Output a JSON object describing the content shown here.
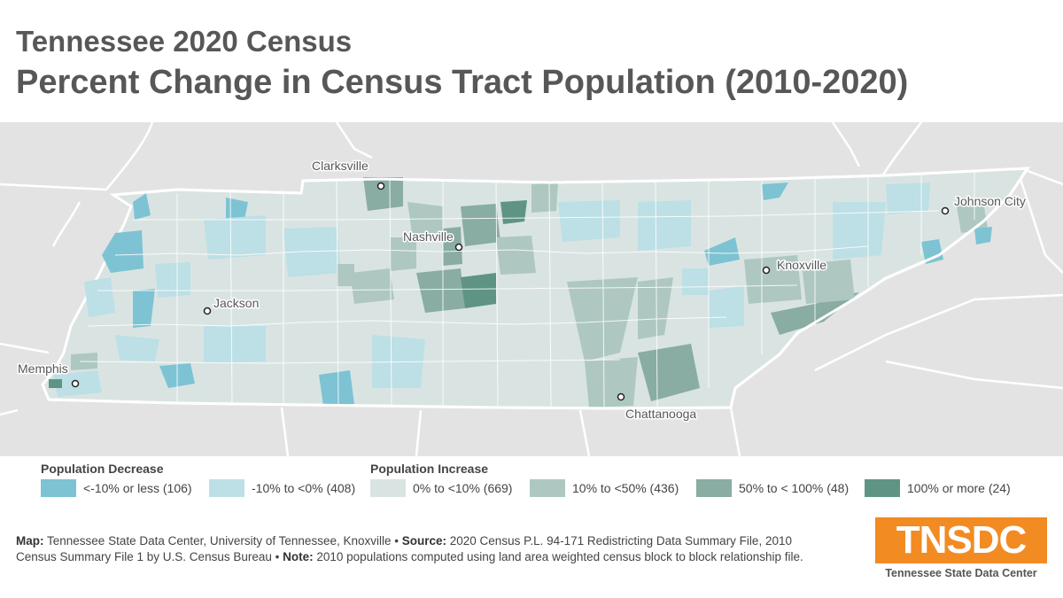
{
  "title": "Tennessee 2020 Census",
  "subtitle": "Percent Change in Census Tract Population (2010-2020)",
  "cities": [
    {
      "name": "Clarksville"
    },
    {
      "name": "Nashville"
    },
    {
      "name": "Jackson"
    },
    {
      "name": "Memphis"
    },
    {
      "name": "Knoxville"
    },
    {
      "name": "Johnson City"
    },
    {
      "name": "Chattanooga"
    }
  ],
  "legend": {
    "decrease_heading": "Population Decrease",
    "increase_heading": "Population Increase",
    "classes": [
      {
        "label": "<-10% or less (106)",
        "color": "#7dc3d3"
      },
      {
        "label": "-10% to <0% (408)",
        "color": "#bddfe6"
      },
      {
        "label": "0% to <10% (669)",
        "color": "#d9e4e2"
      },
      {
        "label": "10% to <50% (436)",
        "color": "#aec7c1"
      },
      {
        "label": "50% to < 100% (48)",
        "color": "#89aca3"
      },
      {
        "label": "100% or more (24)",
        "color": "#5f9485"
      }
    ]
  },
  "source": {
    "map_label": "Map:",
    "map_text": "Tennessee State Data Center, University of Tennessee, Knoxville •",
    "source_label": "Source:",
    "source_text": "2020 Census P.L. 94-171 Redistricting Data Summary File, 2010 Census Summary File 1 by U.S. Census Bureau •",
    "note_label": "Note:",
    "note_text": "2010 populations computed using land area weighted census block to block relationship file."
  },
  "logo": {
    "text": "TNSDC",
    "subtitle": "Tennessee State Data Center"
  },
  "colors": {
    "background_land": "#e3e3e3",
    "state_fill": "#d9e4e2",
    "logo_orange": "#f28b22",
    "title_gray": "#575757"
  }
}
